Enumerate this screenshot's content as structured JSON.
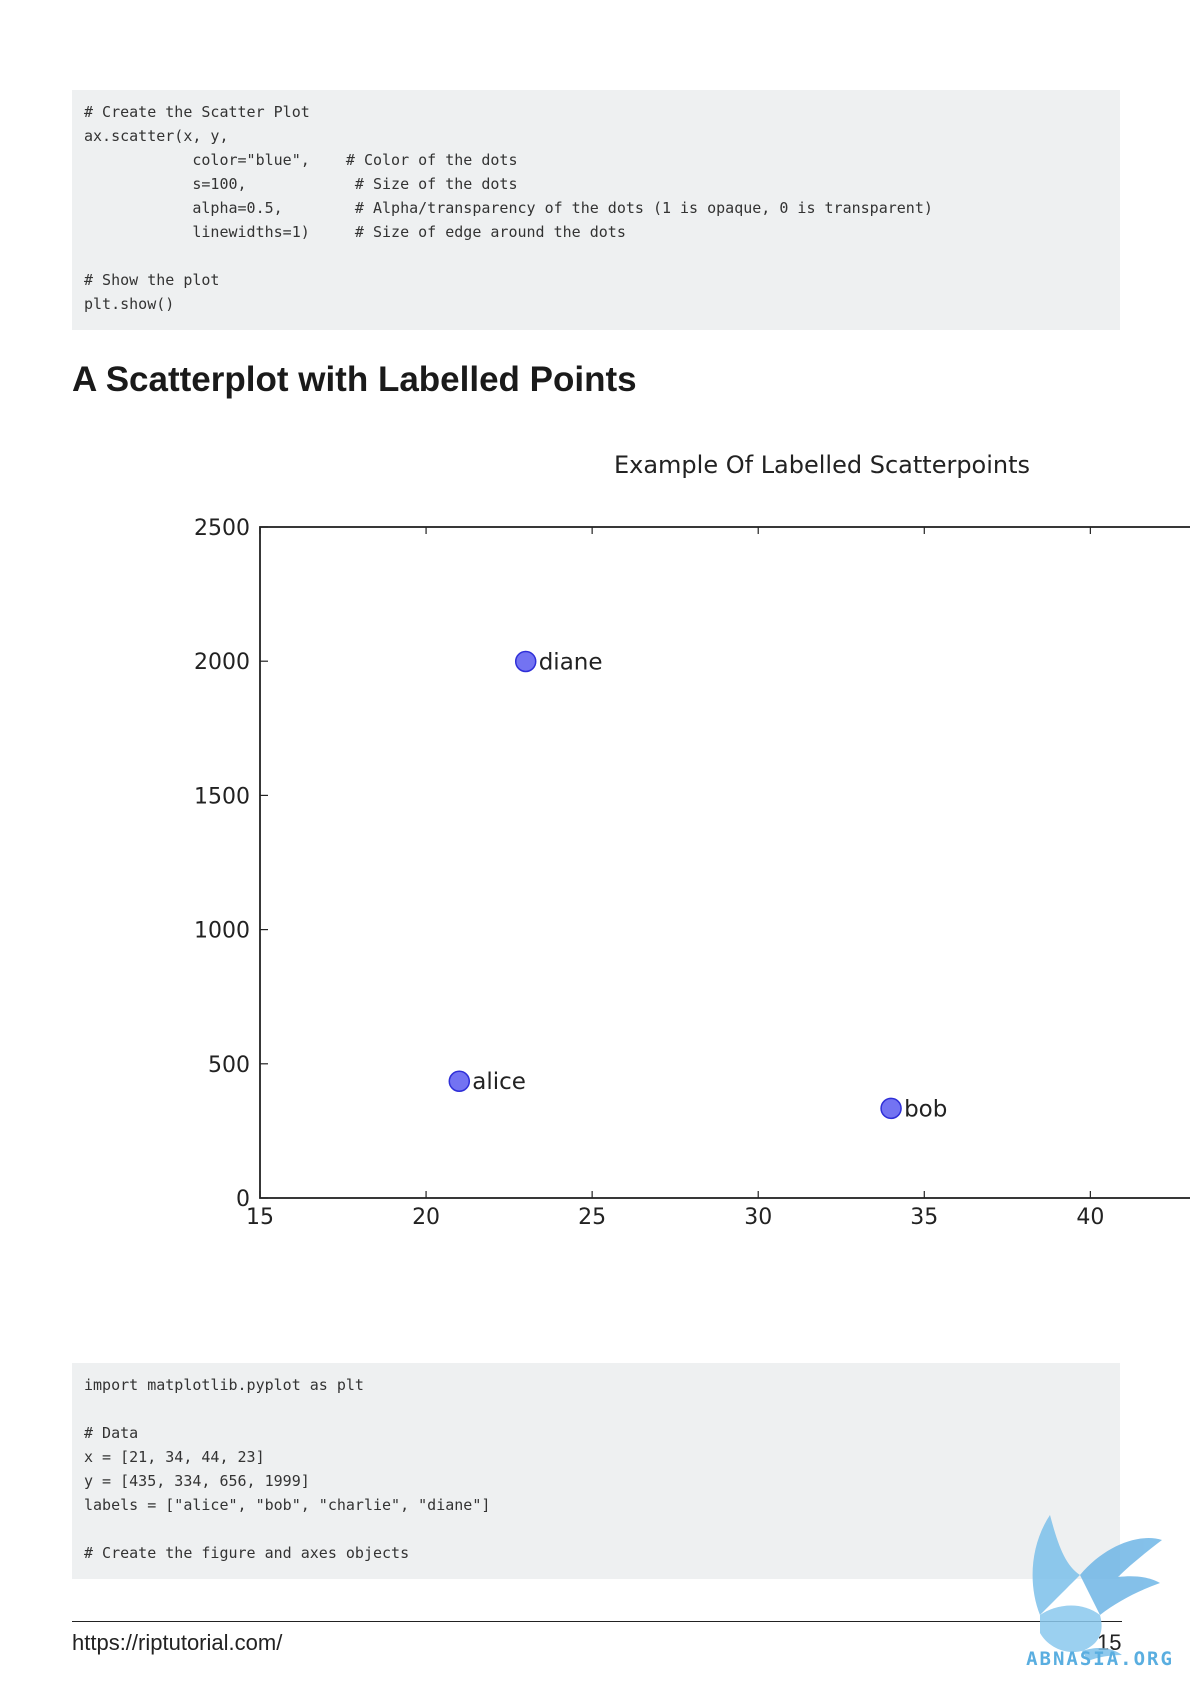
{
  "code_top": {
    "lines": [
      "# Create the Scatter Plot",
      "ax.scatter(x, y,",
      "            color=\"blue\",    # Color of the dots",
      "            s=100,            # Size of the dots",
      "            alpha=0.5,        # Alpha/transparency of the dots (1 is opaque, 0 is transparent)",
      "            linewidths=1)     # Size of edge around the dots",
      "",
      "# Show the plot",
      "plt.show()"
    ]
  },
  "section_heading": "A Scatterplot with Labelled Points",
  "chart_data": {
    "type": "scatter",
    "title": "Example Of Labelled Scatterpoints",
    "xlabel": "",
    "ylabel": "",
    "xlim": [
      15,
      43
    ],
    "ylim": [
      0,
      2500
    ],
    "x_ticks": [
      15,
      20,
      25,
      30,
      35,
      40
    ],
    "y_ticks": [
      0,
      500,
      1000,
      1500,
      2000,
      2500
    ],
    "grid": false,
    "marker_color": "#5b5bf0",
    "marker_edge_color": "#2f2fd8",
    "points": [
      {
        "x": 21,
        "y": 435,
        "label": "alice"
      },
      {
        "x": 34,
        "y": 334,
        "label": "bob"
      },
      {
        "x": 23,
        "y": 1999,
        "label": "diane"
      }
    ]
  },
  "code_bottom": {
    "lines": [
      "import matplotlib.pyplot as plt",
      "",
      "# Data",
      "x = [21, 34, 44, 23]",
      "y = [435, 334, 656, 1999]",
      "labels = [\"alice\", \"bob\", \"charlie\", \"diane\"]",
      "",
      "# Create the figure and axes objects"
    ]
  },
  "footer": {
    "url": "https://riptutorial.com/",
    "page_number": "15"
  },
  "watermark": {
    "text": "ABNASIA.ORG",
    "color": "#5aaee0",
    "icon": "griffin-logo-icon"
  }
}
